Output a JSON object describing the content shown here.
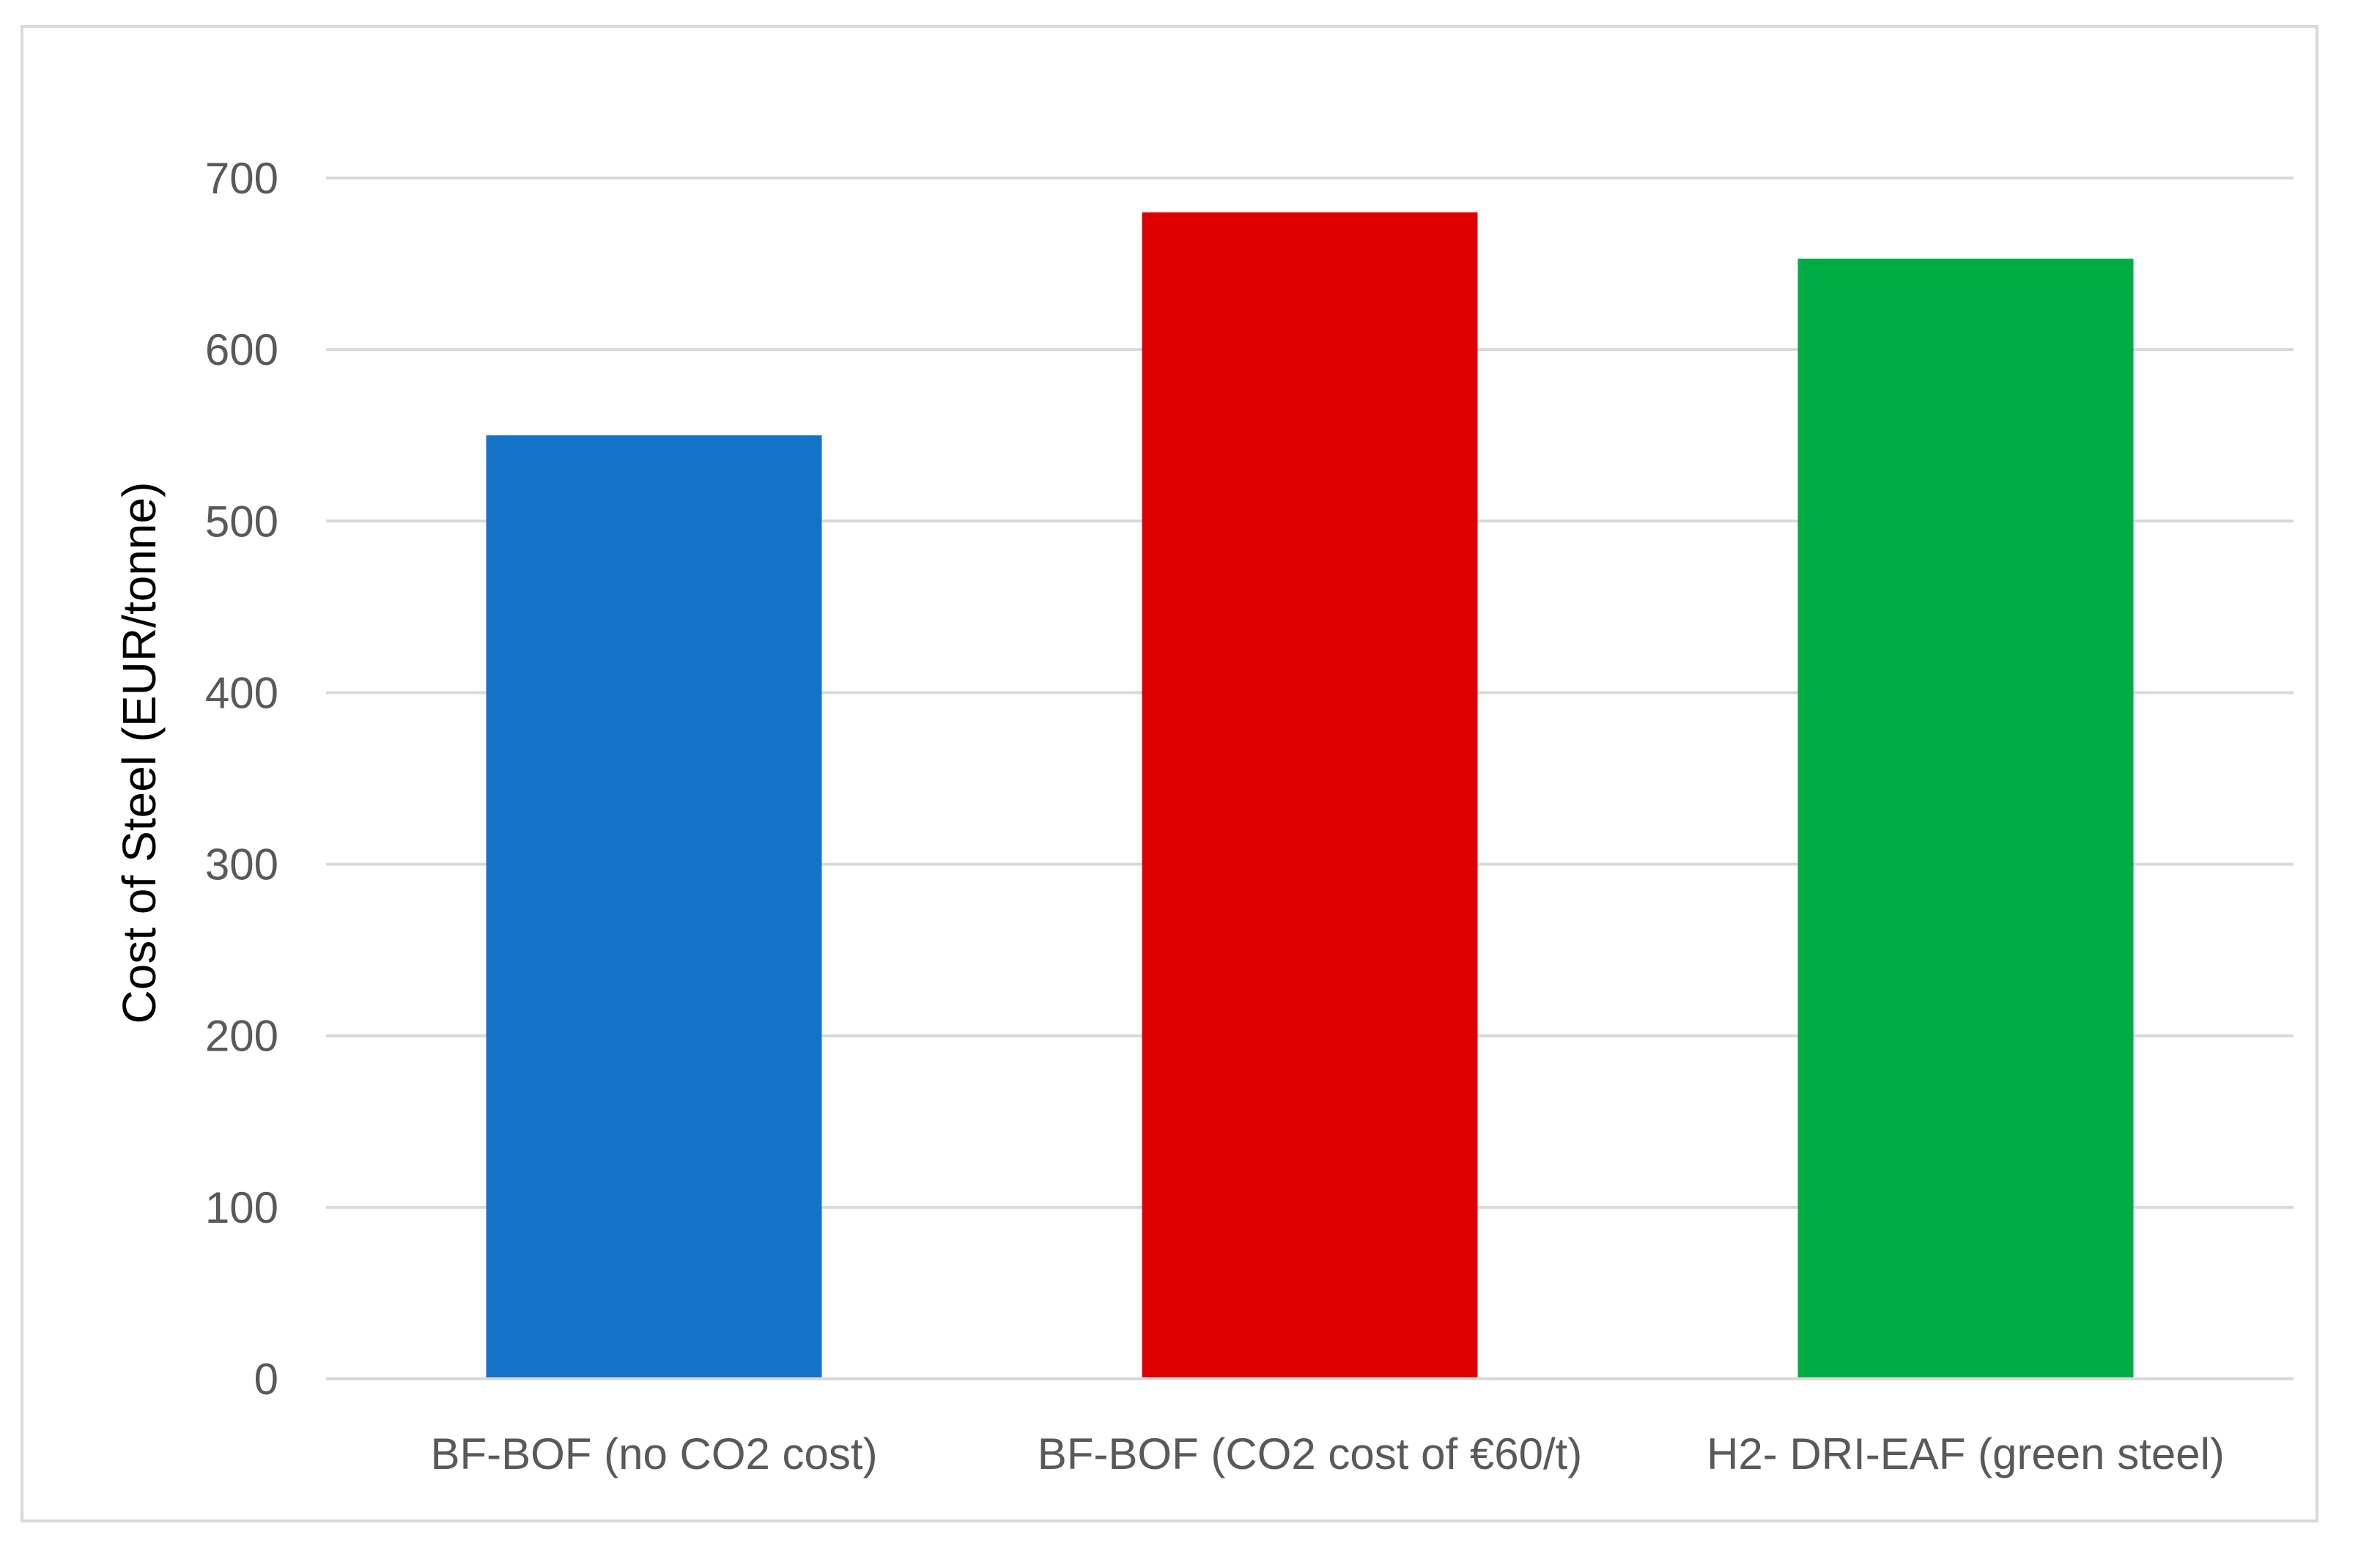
{
  "chart_data": {
    "type": "bar",
    "title": "",
    "xlabel": "",
    "ylabel": "Cost of Steel (EUR/tonne)",
    "ylim": [
      0,
      700
    ],
    "yticks": [
      0,
      100,
      200,
      300,
      400,
      500,
      600,
      700
    ],
    "ytick_labels": [
      "0",
      "100",
      "200",
      "300",
      "400",
      "500",
      "600",
      "700"
    ],
    "grid": true,
    "legend": "none",
    "categories": [
      "BF-BOF (no CO2 cost)",
      "BF-BOF (CO2 cost of €60/t)",
      "H2- DRI-EAF (green steel)"
    ],
    "values": [
      550,
      680,
      653
    ],
    "colors": [
      "#1572C9",
      "#DE0000",
      "#00AD45"
    ]
  },
  "style": {
    "gridline_color": "#D9D9D9",
    "frame_color": "#D9D9D9",
    "tick_label_color": "#595959",
    "axis_title_color": "#000000"
  }
}
